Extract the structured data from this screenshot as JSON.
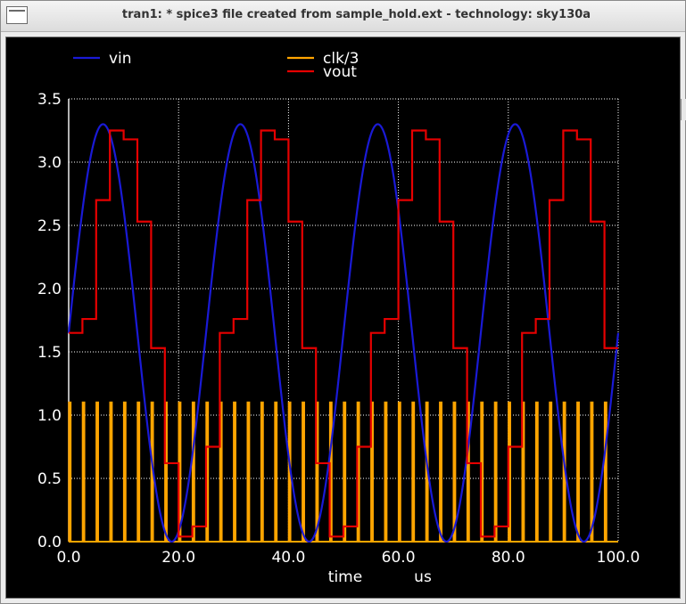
{
  "window": {
    "title": "tran1: * spice3 file created from sample_hold.ext - technology: sky130a"
  },
  "chart_data": {
    "type": "line",
    "title": "tran1: * spice3 file created from sample_hold.ext - technology: sky130a",
    "xlabel": "time",
    "xunit": "us",
    "ylabel": "",
    "xlim": [
      0,
      100
    ],
    "ylim": [
      0,
      3.5
    ],
    "grid": true,
    "xticks": [
      "0.0",
      "20.0",
      "40.0",
      "60.0",
      "80.0",
      "100.0"
    ],
    "yticks": [
      "0.0",
      "0.5",
      "1.0",
      "1.5",
      "2.0",
      "2.5",
      "3.0",
      "3.5"
    ],
    "background": "#000000",
    "series": [
      {
        "name": "vin",
        "color": "#1a1ad6",
        "kind": "sine",
        "offset": 1.65,
        "amplitude": 1.65,
        "period_us": 25,
        "phase_us": 0
      },
      {
        "name": "clk/3",
        "color": "#ffa500",
        "kind": "pulse",
        "low": 0.0,
        "high": 1.1,
        "period_us": 2.5,
        "width_us": 0.3,
        "start_us": 0.05
      },
      {
        "name": "vout",
        "color": "#e60000",
        "kind": "sample_hold",
        "levels": [
          1.65,
          1.76,
          2.7,
          3.25,
          3.18,
          2.53,
          1.53,
          0.62,
          0.04,
          0.12,
          0.75
        ],
        "step_us": 2.5
      }
    ],
    "legend": [
      {
        "label": "vin",
        "color": "#1a1ad6"
      },
      {
        "label": "clk/3",
        "color": "#ffa500"
      },
      {
        "label": "vout",
        "color": "#e60000"
      }
    ]
  }
}
